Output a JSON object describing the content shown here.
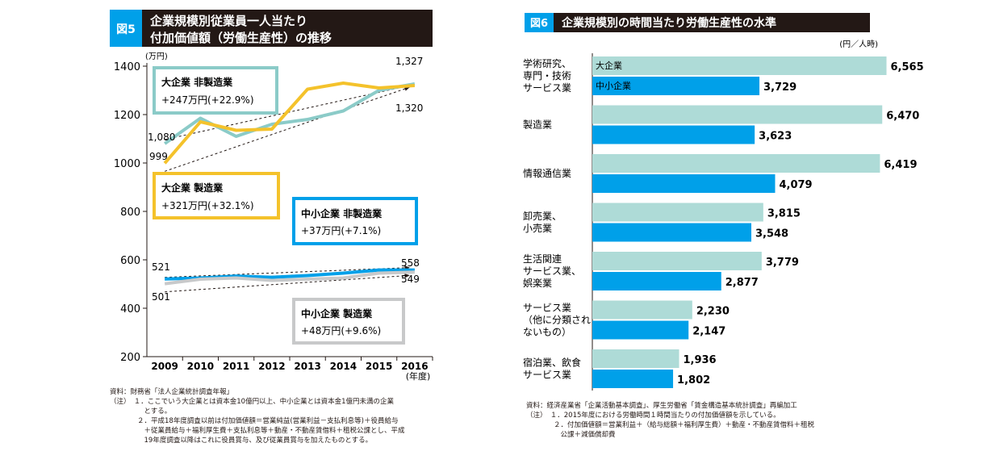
{
  "colors": {
    "large_nonmfg": "#8bcbc8",
    "large_mfg": "#f4c22b",
    "sme_nonmfg": "#00a0e9",
    "sme_mfg": "#c8c9ca",
    "bar_large": "#aedbd7",
    "bar_sme": "#00a0e9",
    "badge": "#00a0e9",
    "title_bg": "#231815"
  },
  "chart_data": [
    {
      "type": "line",
      "badge": "図5",
      "title_line1": "企業規模別従業員一人当たり",
      "title_line2": "付加価値額（労働生産性）の推移",
      "unit_label": "(万円)",
      "x_unit_label": "(年度)",
      "x": [
        "2009",
        "2010",
        "2011",
        "2012",
        "2013",
        "2014",
        "2015",
        "2016"
      ],
      "y_ticks": [
        "1400",
        "1200",
        "1000",
        "800",
        "600",
        "400",
        "200"
      ],
      "ylim": [
        200,
        1400
      ],
      "grid": false,
      "series": [
        {
          "key": "large_nonmfg",
          "values": [
            1080,
            1185,
            1110,
            1160,
            1180,
            1215,
            1300,
            1327
          ]
        },
        {
          "key": "large_mfg",
          "values": [
            999,
            1170,
            1135,
            1140,
            1305,
            1330,
            1310,
            1320
          ]
        },
        {
          "key": "sme_nonmfg",
          "values": [
            521,
            525,
            533,
            528,
            535,
            545,
            558,
            558
          ]
        },
        {
          "key": "sme_mfg",
          "values": [
            501,
            520,
            525,
            515,
            520,
            525,
            545,
            549
          ]
        }
      ],
      "point_labels": {
        "ln_start": "1,080",
        "lm_start": "999",
        "ln_end": "1,327",
        "lm_end": "1,320",
        "sn_start": "521",
        "sm_start": "501",
        "sn_end": "558",
        "sm_end": "549"
      },
      "callouts": {
        "large_nonmfg": {
          "line1": "大企業 非製造業",
          "line2": "+247万円(+22.9%)"
        },
        "large_mfg": {
          "line1": "大企業 製造業",
          "line2": "+321万円(+32.1%)"
        },
        "sme_nonmfg": {
          "line1": "中小企業 非製造業",
          "line2": "+37万円(+7.1%)"
        },
        "sme_mfg": {
          "line1": "中小企業 製造業",
          "line2": "+48万円(+9.6%)"
        }
      },
      "notes": "資料：財務省「法人企業統計調査年報」\n（注）　１．ここでいう大企業とは資本金10億円以上、中小企業とは資本金1億円未満の企業\n　　　　　とする。\n　　　　２．平成18年度調査以前は付加価値額＝営業純益(営業利益－支払利息等)＋役員給与\n　　　　　＋従業員給与＋福利厚生費＋支払利息等＋動産・不動産賃借料＋租税公課とし、平成\n　　　　　19年度調査以降はこれに役員賞与、及び従業員賞与を加えたものとする。"
    },
    {
      "type": "bar",
      "badge": "図6",
      "title": "企業規模別の時間当たり労働生産性の水準",
      "unit_label": "(円／人時)",
      "legend": {
        "large": "大企業",
        "sme": "中小企業"
      },
      "xlim": [
        0,
        7300
      ],
      "categories": [
        {
          "lines": [
            "学術研究、",
            "専門・技術",
            "サービス業"
          ],
          "large": 6565,
          "sme": 3729,
          "large_label": "6,565",
          "sme_label": "3,729"
        },
        {
          "lines": [
            "製造業"
          ],
          "large": 6470,
          "sme": 3623,
          "large_label": "6,470",
          "sme_label": "3,623"
        },
        {
          "lines": [
            "情報通信業"
          ],
          "large": 6419,
          "sme": 4079,
          "large_label": "6,419",
          "sme_label": "4,079"
        },
        {
          "lines": [
            "卸売業、",
            "小売業"
          ],
          "large": 3815,
          "sme": 3548,
          "large_label": "3,815",
          "sme_label": "3,548"
        },
        {
          "lines": [
            "生活関連",
            "サービス業、",
            "娯楽業"
          ],
          "large": 3779,
          "sme": 2877,
          "large_label": "3,779",
          "sme_label": "2,877"
        },
        {
          "lines": [
            "サービス業",
            "（他に分類され",
            "ないもの）"
          ],
          "large": 2230,
          "sme": 2147,
          "large_label": "2,230",
          "sme_label": "2,147"
        },
        {
          "lines": [
            "宿泊業、飲食",
            "サービス業"
          ],
          "large": 1936,
          "sme": 1802,
          "large_label": "1,936",
          "sme_label": "1,802"
        }
      ],
      "notes": "資料：経済産業省「企業活動基本調査」、厚生労働省「賃金構造基本統計調査」再編加工\n（注）　１．2015年度における労働時間１時間当たりの付加価値額を示している。\n　　　　２．付加価値額＝営業利益＋（給与総額＋福利厚生費）＋動産・不動産賃借料＋租税\n　　　　　公課＋減価償却費"
    }
  ]
}
